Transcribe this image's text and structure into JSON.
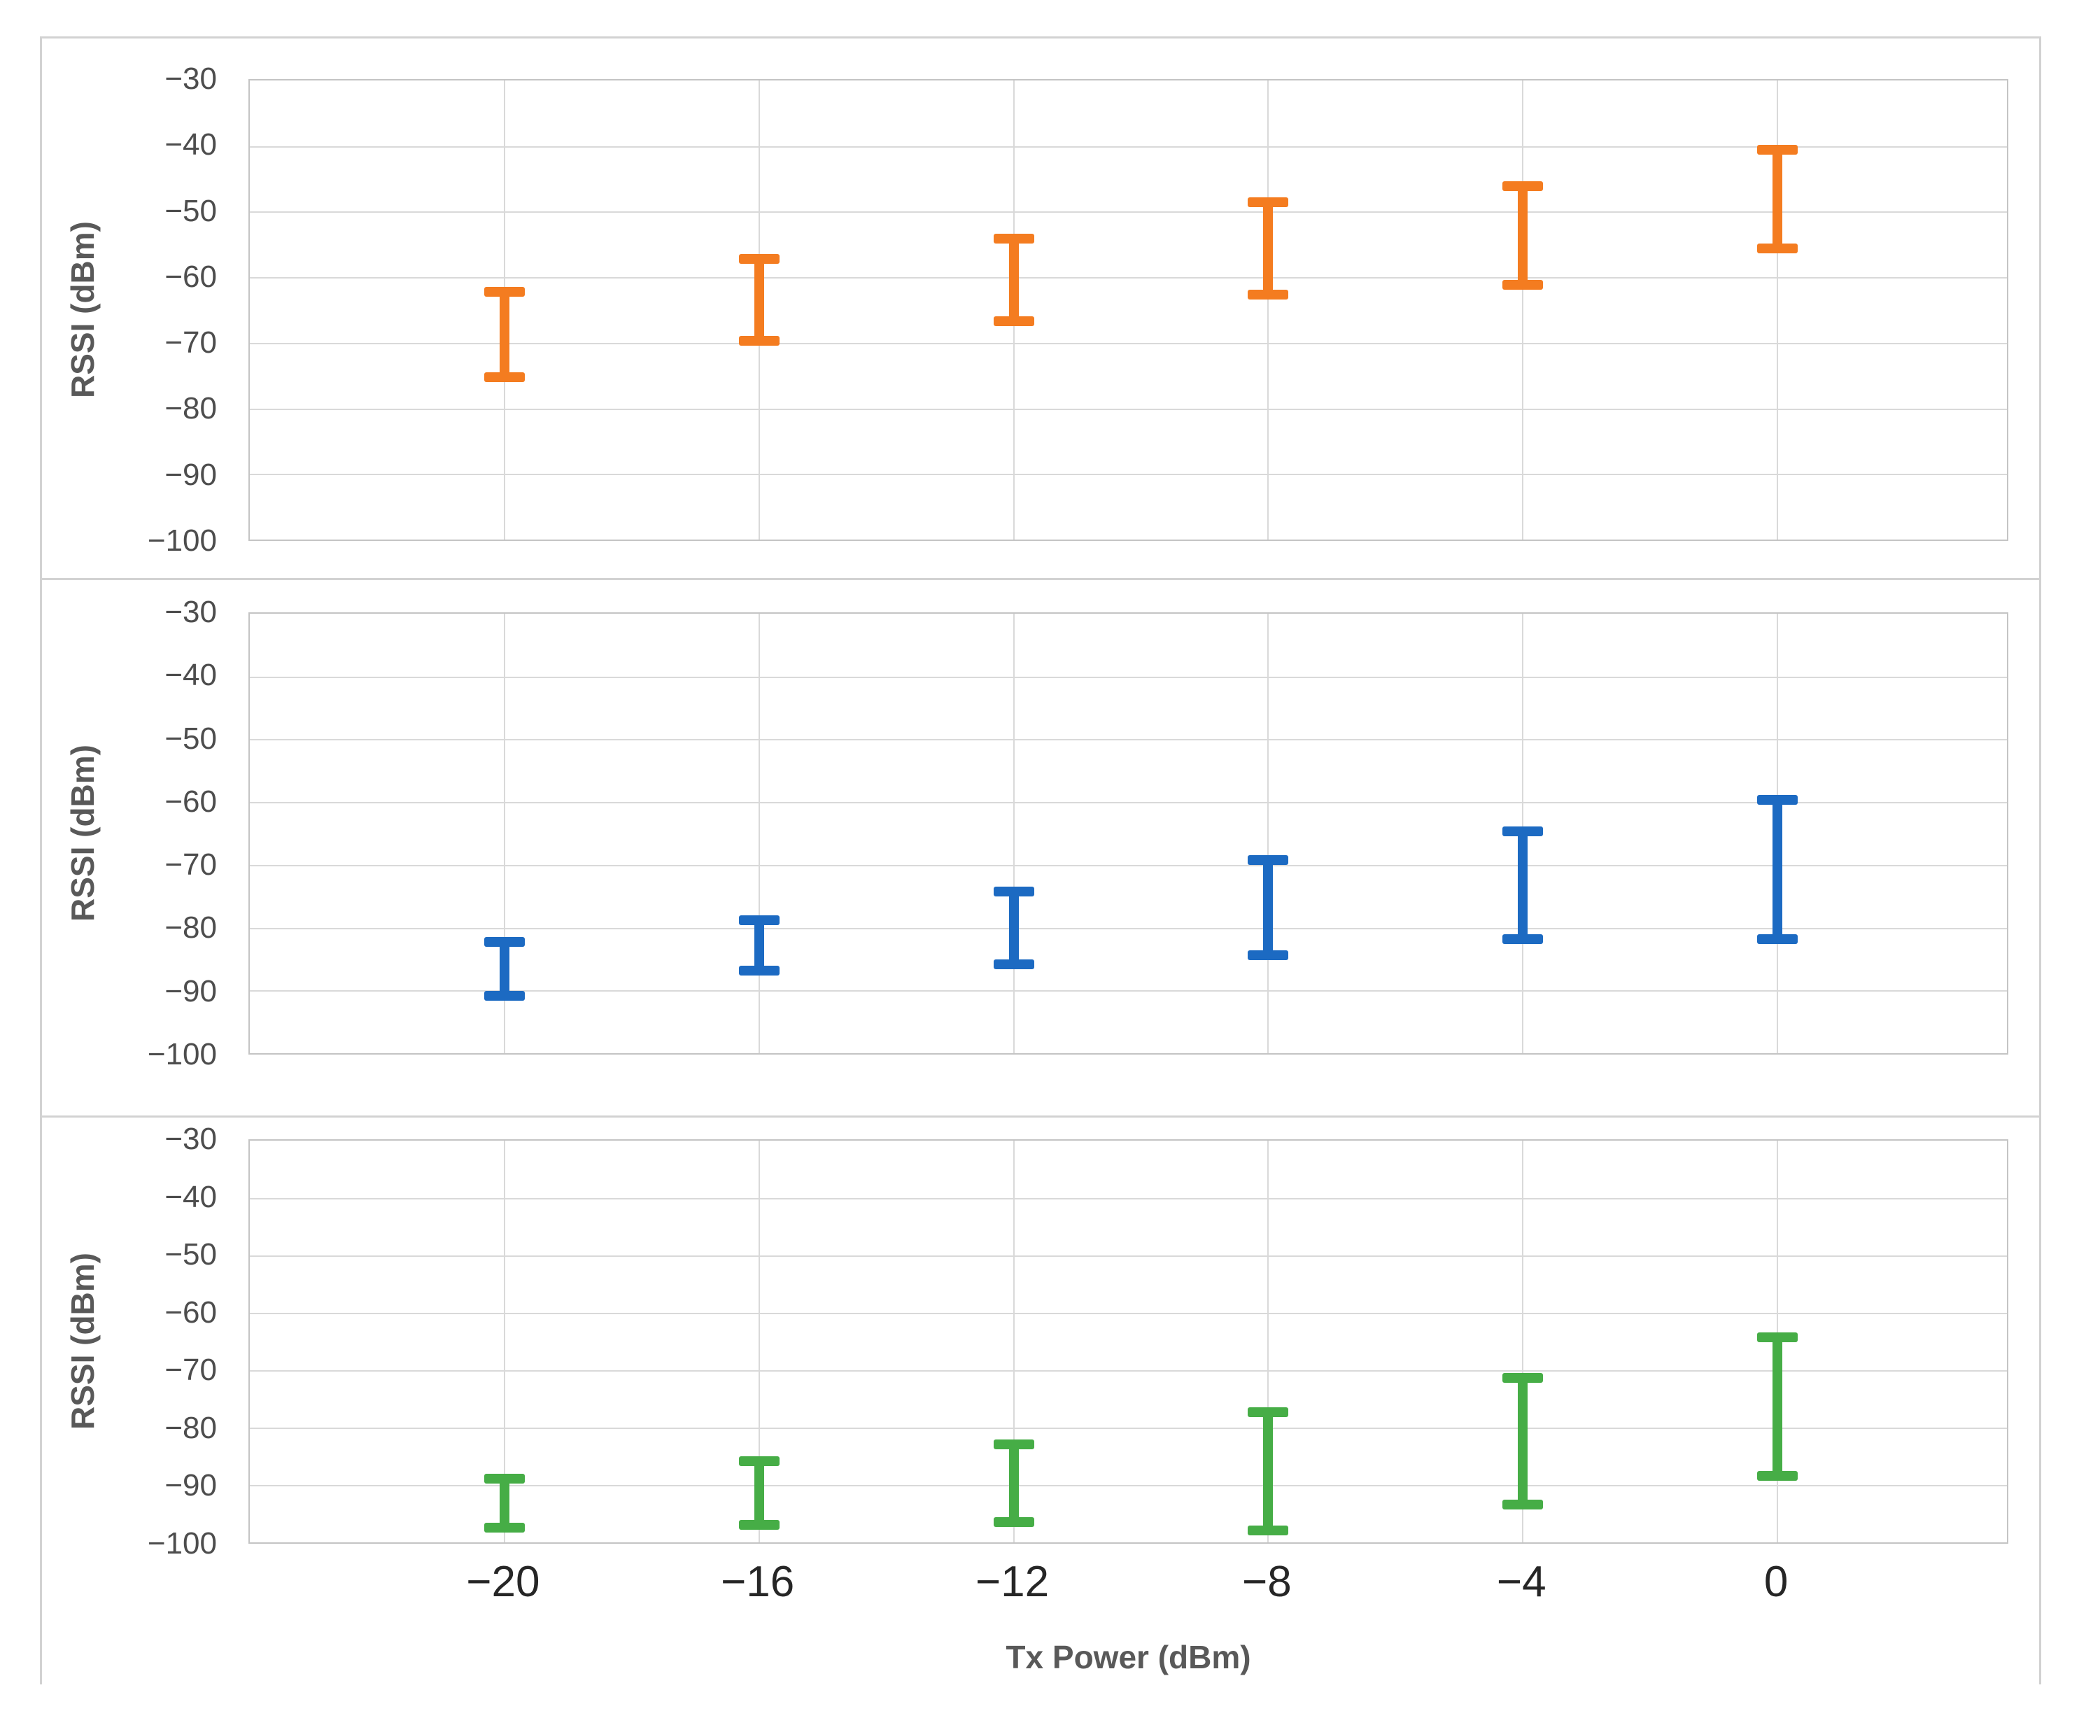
{
  "figure": {
    "background": "#ffffff",
    "border_color": "#d2d2d2",
    "gridline_color": "#d9d9d9",
    "y_axis": {
      "title": "RSSI (dBm)",
      "tick_labels": [
        "−30",
        "−40",
        "−50",
        "−60",
        "−70",
        "−80",
        "−90",
        "−100"
      ],
      "range": [
        -100,
        -30
      ],
      "grid": true
    },
    "x_axis": {
      "title": "Tx Power (dBm)",
      "tick_labels": [
        "−20",
        "−16",
        "−12",
        "−8",
        "−4",
        "0"
      ]
    }
  },
  "chart_data": [
    {
      "type": "errorbar",
      "panel": 1,
      "name": "series-orange",
      "color": "#f47c20",
      "x": [
        -20,
        -16,
        -12,
        -8,
        -4,
        0
      ],
      "ranges": [
        [
          -75,
          -62
        ],
        [
          -69.5,
          -57
        ],
        [
          -66.5,
          -54
        ],
        [
          -62.5,
          -48.5
        ],
        [
          -61,
          -46
        ],
        [
          -55.5,
          -40.5
        ]
      ],
      "xlabel": "",
      "ylabel": "RSSI (dBm)",
      "ylim": [
        -100,
        -30
      ],
      "legend": "none"
    },
    {
      "type": "errorbar",
      "panel": 2,
      "name": "series-blue",
      "color": "#1c6ac2",
      "x": [
        -20,
        -16,
        -12,
        -8,
        -4,
        0
      ],
      "ranges": [
        [
          -90.5,
          -82
        ],
        [
          -86.5,
          -78.5
        ],
        [
          -85.5,
          -74
        ],
        [
          -84,
          -69
        ],
        [
          -81.5,
          -64.5
        ],
        [
          -81.5,
          -59.5
        ]
      ],
      "xlabel": "",
      "ylabel": "RSSI (dBm)",
      "ylim": [
        -100,
        -30
      ],
      "legend": "none"
    },
    {
      "type": "errorbar",
      "panel": 3,
      "name": "series-green",
      "color": "#46ad46",
      "x": [
        -20,
        -16,
        -12,
        -8,
        -4,
        0
      ],
      "ranges": [
        [
          -97,
          -88.5
        ],
        [
          -96.5,
          -85.5
        ],
        [
          -96,
          -82.5
        ],
        [
          -97.5,
          -77
        ],
        [
          -93,
          -71
        ],
        [
          -88,
          -64
        ]
      ],
      "xlabel": "Tx Power (dBm)",
      "ylabel": "RSSI (dBm)",
      "ylim": [
        -100,
        -30
      ],
      "legend": "none"
    }
  ]
}
